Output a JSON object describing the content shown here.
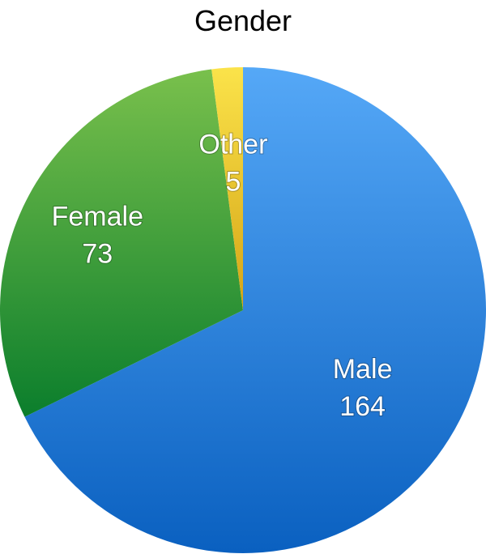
{
  "chart_data": {
    "type": "pie",
    "title": "Gender",
    "categories": [
      "Male",
      "Female",
      "Other"
    ],
    "values": [
      164,
      73,
      5
    ],
    "colors": {
      "Male": [
        "#55a8f7",
        "#0a60c0"
      ],
      "Female": [
        "#79c04c",
        "#0b7e2c"
      ],
      "Other": [
        "#fbe34a",
        "#d4a416"
      ]
    },
    "start": "top",
    "direction": "clockwise",
    "data_labels": "category-and-value-inside"
  }
}
